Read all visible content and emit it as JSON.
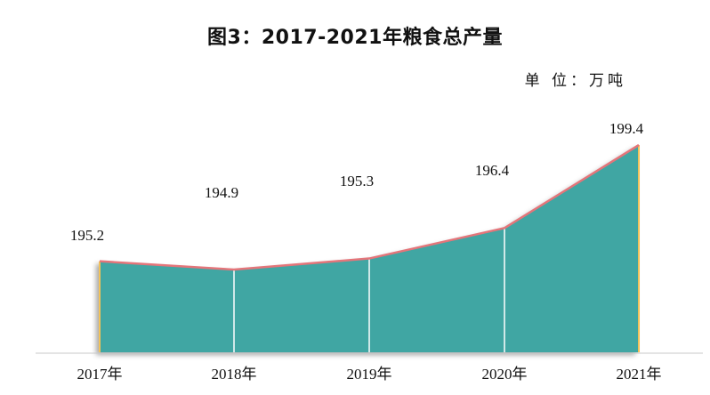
{
  "chart_data": {
    "type": "area",
    "title": "图3：2017-2021年粮食总产量",
    "unit": "单 位：万吨",
    "categories": [
      "2017年",
      "2018年",
      "2019年",
      "2020年",
      "2021年"
    ],
    "series": [
      {
        "values": [
          195.2,
          194.9,
          195.3,
          196.4,
          199.4
        ]
      }
    ],
    "data_labels": [
      "195.2",
      "194.9",
      "195.3",
      "196.4",
      "199.4"
    ],
    "xlabel": "",
    "ylabel": "",
    "grid": false,
    "legend": "none",
    "colors": {
      "fill": "#3fa6a3",
      "outline": "#e4757a",
      "drop_line": "#f2c25a",
      "axis": "#c8c8c8"
    }
  }
}
